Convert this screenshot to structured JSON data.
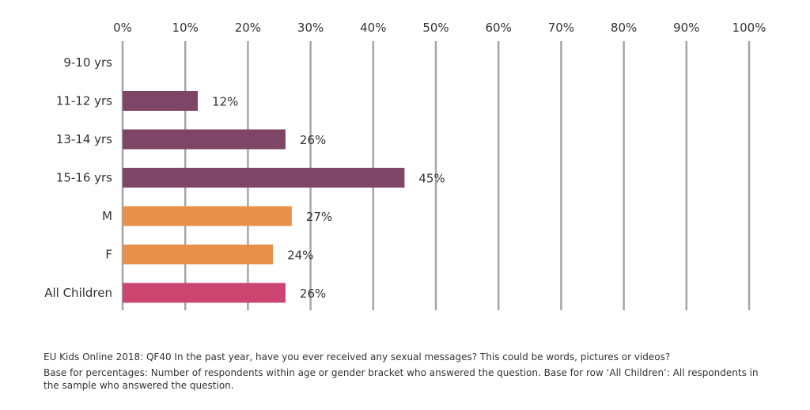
{
  "chart_data": {
    "type": "bar",
    "orientation": "horizontal",
    "categories": [
      "9-10 yrs",
      "11-12 yrs",
      "13-14 yrs",
      "15-16 yrs",
      "M",
      "F",
      "All Children"
    ],
    "values": [
      null,
      12,
      26,
      45,
      27,
      24,
      26
    ],
    "data_labels": [
      "",
      "12%",
      "26%",
      "45%",
      "27%",
      "24%",
      "26%"
    ],
    "bar_colors": [
      "#7e4566",
      "#7e4566",
      "#7e4566",
      "#7e4566",
      "#e8904a",
      "#e8904a",
      "#cc4470"
    ],
    "xlim": [
      0,
      100
    ],
    "x_ticks": [
      0,
      10,
      20,
      30,
      40,
      50,
      60,
      70,
      80,
      90,
      100
    ],
    "x_tick_labels": [
      "0%",
      "10%",
      "20%",
      "30%",
      "40%",
      "50%",
      "60%",
      "70%",
      "80%",
      "90%",
      "100%"
    ],
    "x_axis_position": "top",
    "grid": true,
    "legend": "none"
  },
  "notes": {
    "source": "EU Kids Online 2018: QF40 In the past year, have you ever received any sexual messages? This could be words, pictures or videos?",
    "base": "Base for percentages: Number of respondents within age or gender bracket who answered the question. Base for row ‘All Children’: All respondents in the sample who answered the question."
  }
}
